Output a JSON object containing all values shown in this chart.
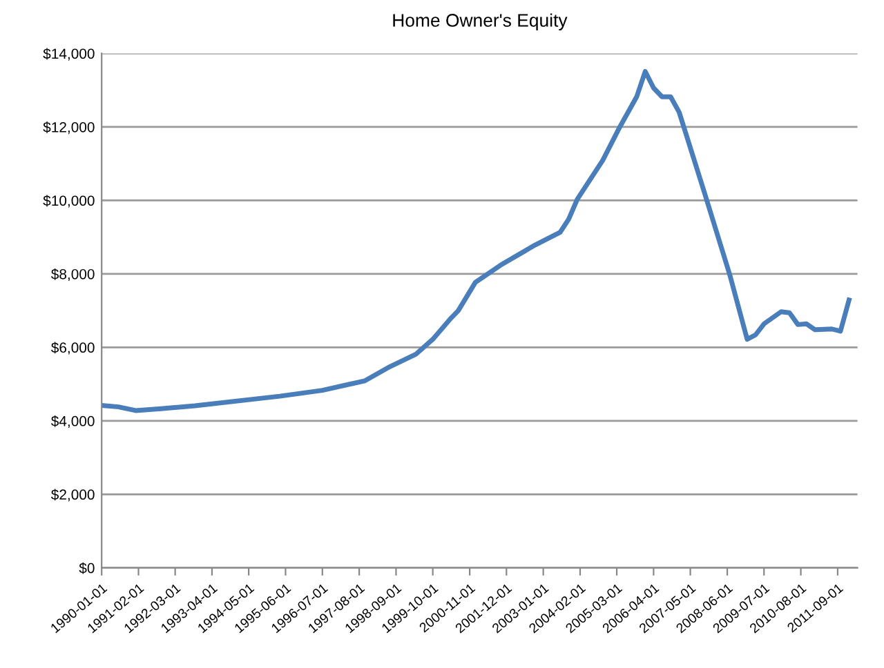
{
  "chart_data": {
    "type": "line",
    "title": "Home Owner's Equity",
    "x": [
      "1990-01-01",
      "1990-07-01",
      "1991-01-01",
      "1991-10-01",
      "1992-10-01",
      "1994-10-01",
      "1995-04-01",
      "1996-07-01",
      "1997-10-01",
      "1998-07-01",
      "1999-04-01",
      "1999-10-01",
      "2000-04-01",
      "2000-07-01",
      "2001-01-01",
      "2001-10-01",
      "2002-10-01",
      "2003-07-01",
      "2003-10-01",
      "2004-01-01",
      "2004-10-01",
      "2005-04-01",
      "2005-10-01",
      "2006-01-01",
      "2006-04-01",
      "2006-07-01",
      "2006-10-01",
      "2007-01-01",
      "2007-10-01",
      "2008-07-01",
      "2009-01-01",
      "2009-04-01",
      "2009-07-01",
      "2010-01-01",
      "2010-04-01",
      "2010-07-01",
      "2010-10-01",
      "2011-01-01",
      "2011-07-01",
      "2011-10-01",
      "2012-01-01"
    ],
    "series": [
      {
        "color": "#4a7ebb",
        "values": [
          4420,
          4380,
          4280,
          4330,
          4410,
          4620,
          4670,
          4830,
          5090,
          5480,
          5810,
          6220,
          6760,
          7000,
          7770,
          8240,
          8780,
          9130,
          9490,
          10030,
          11090,
          11990,
          12820,
          13510,
          13060,
          12820,
          12820,
          12400,
          10200,
          7950,
          6220,
          6340,
          6640,
          6970,
          6940,
          6620,
          6640,
          6480,
          6500,
          6440,
          7290
        ]
      }
    ],
    "xlim": [
      "1990-01-01",
      "2012-04-01"
    ],
    "xticks": [
      "1990-01-01",
      "1991-02-01",
      "1992-03-01",
      "1993-04-01",
      "1994-05-01",
      "1995-06-01",
      "1996-07-01",
      "1997-08-01",
      "1998-09-01",
      "1999-10-01",
      "2000-11-01",
      "2001-12-01",
      "2003-01-01",
      "2004-02-01",
      "2005-03-01",
      "2006-04-01",
      "2007-05-01",
      "2008-06-01",
      "2009-07-01",
      "2010-08-01",
      "2011-09-01"
    ],
    "ylim": [
      0,
      14000
    ],
    "yticks": [
      {
        "value": 0,
        "label": "$0"
      },
      {
        "value": 2000,
        "label": "$2,000"
      },
      {
        "value": 4000,
        "label": "$4,000"
      },
      {
        "value": 6000,
        "label": "$6,000"
      },
      {
        "value": 8000,
        "label": "$8,000"
      },
      {
        "value": 10000,
        "label": "$10,000"
      },
      {
        "value": 12000,
        "label": "$12,000"
      },
      {
        "value": 14000,
        "label": "$14,000"
      }
    ],
    "grid": "y",
    "legend": false,
    "marker": "none",
    "line_style": "solid"
  }
}
